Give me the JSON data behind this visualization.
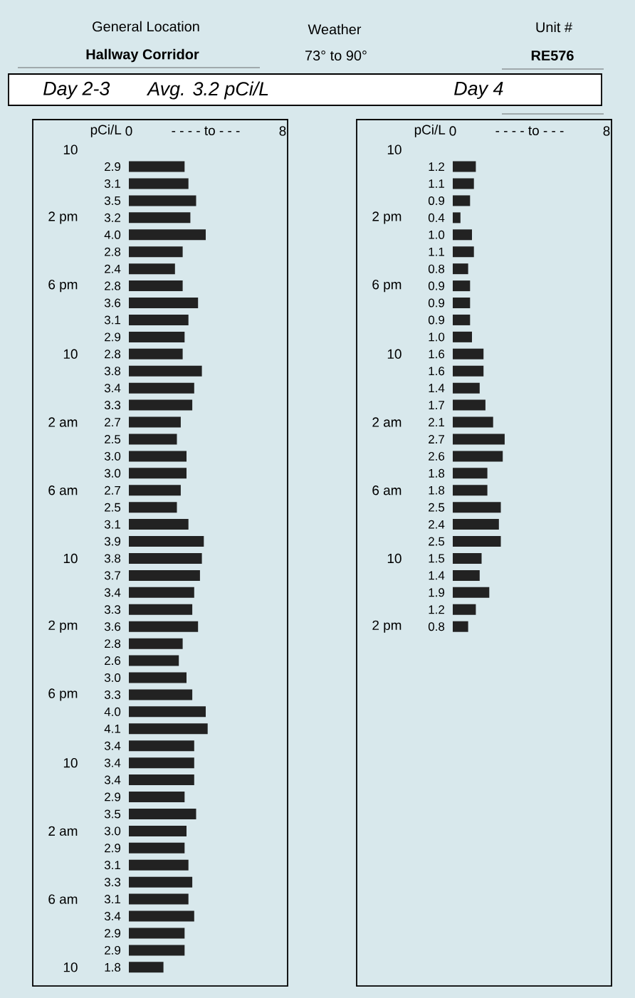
{
  "chart_data": [
    {
      "type": "other",
      "annotations": [
        "General Location",
        "Hallway Corridor",
        "Weather",
        "73° to 90°",
        "Unit #",
        "RE576"
      ]
    },
    {
      "type": "bar",
      "orientation": "horizontal",
      "title": "Day 2-3",
      "subtitle": "Avg. 3.2 pCi/L",
      "xlabel": "pCi/L",
      "annotations": [
        "- - - - to - - -"
      ],
      "xlim": [
        0,
        8
      ],
      "xticks": [
        0,
        8
      ],
      "color": "#222222",
      "value_labels": [
        null,
        "2.9",
        "3.1",
        "3.5",
        "3.2",
        "4.0",
        "2.8",
        "2.4",
        "2.8",
        "3.6",
        "3.1",
        "2.9",
        "2.8",
        "3.8",
        "3.4",
        "3.3",
        "2.7",
        "2.5",
        "3.0",
        "3.0",
        "2.7",
        "2.5",
        "3.1",
        "3.9",
        "3.8",
        "3.7",
        "3.4",
        "3.3",
        "3.6",
        "2.8",
        "2.6",
        "3.0",
        "3.3",
        "4.0",
        "4.1",
        "3.4",
        "3.4",
        "3.4",
        "2.9",
        "3.5",
        "3.0",
        "2.9",
        "3.1",
        "3.3",
        "3.1",
        "3.4",
        "2.9",
        "2.9",
        "1.8"
      ],
      "categories": [
        "10",
        null,
        null,
        null,
        "2 pm",
        null,
        null,
        null,
        "6 pm",
        null,
        null,
        null,
        "10",
        null,
        null,
        null,
        "2 am",
        null,
        null,
        null,
        "6 am",
        null,
        null,
        null,
        "10",
        null,
        null,
        null,
        "2 pm",
        null,
        null,
        null,
        "6 pm",
        null,
        null,
        null,
        "10",
        null,
        null,
        null,
        "2 am",
        null,
        null,
        null,
        "6 am",
        null,
        null,
        null,
        "10"
      ],
      "values": [
        null,
        2.9,
        3.1,
        3.5,
        3.2,
        4.0,
        2.8,
        2.4,
        2.8,
        3.6,
        3.1,
        2.9,
        2.8,
        3.8,
        3.4,
        3.3,
        2.7,
        2.5,
        3.0,
        3.0,
        2.7,
        2.5,
        3.1,
        3.9,
        3.8,
        3.7,
        3.4,
        3.3,
        3.6,
        2.8,
        2.6,
        3.0,
        3.3,
        4.0,
        4.1,
        3.4,
        3.4,
        3.4,
        2.9,
        3.5,
        3.0,
        2.9,
        3.1,
        3.3,
        3.1,
        3.4,
        2.9,
        2.9,
        1.8
      ]
    },
    {
      "type": "bar",
      "orientation": "horizontal",
      "title": "Day 4",
      "xlabel": "pCi/L",
      "annotations": [
        "- - - - to - - -"
      ],
      "xlim": [
        0,
        8
      ],
      "xticks": [
        0,
        8
      ],
      "color": "#222222",
      "value_labels": [
        null,
        "1.2",
        "1.1",
        "0.9",
        "0.4",
        "1.0",
        "1.1",
        "0.8",
        "0.9",
        "0.9",
        "0.9",
        "1.0",
        "1.6",
        "1.6",
        "1.4",
        "1.7",
        "2.1",
        "2.7",
        "2.6",
        "1.8",
        "1.8",
        "2.5",
        "2.4",
        "2.5",
        "1.5",
        "1.4",
        "1.9",
        "1.2",
        "0.8"
      ],
      "categories": [
        "10",
        null,
        null,
        null,
        "2 pm",
        null,
        null,
        null,
        "6 pm",
        null,
        null,
        null,
        "10",
        null,
        null,
        null,
        "2 am",
        null,
        null,
        null,
        "6 am",
        null,
        null,
        null,
        "10",
        null,
        null,
        null,
        "2 pm"
      ],
      "values": [
        null,
        1.2,
        1.1,
        0.9,
        0.4,
        1.0,
        1.1,
        0.8,
        0.9,
        0.9,
        0.9,
        1.0,
        1.6,
        1.6,
        1.4,
        1.7,
        2.1,
        2.7,
        2.6,
        1.8,
        1.8,
        2.5,
        2.4,
        2.5,
        1.5,
        1.4,
        1.9,
        1.2,
        0.8
      ]
    }
  ]
}
